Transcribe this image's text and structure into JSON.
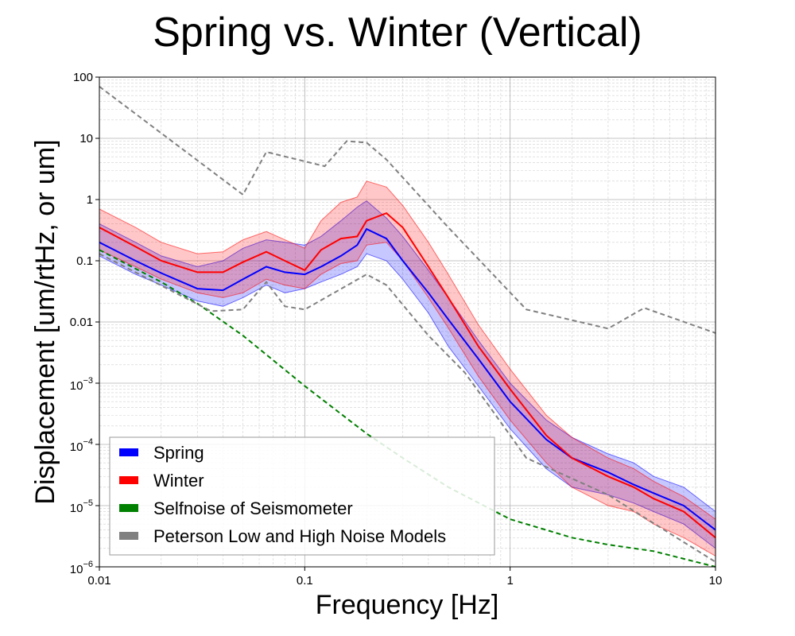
{
  "chart_data": {
    "type": "line",
    "title": "Spring vs. Winter (Vertical)",
    "xlabel": "Frequency [Hz]",
    "ylabel": "Displacement [um/rtHz, or um]",
    "x_scale": "log",
    "y_scale": "log",
    "xlim": [
      0.01,
      10
    ],
    "ylim": [
      1e-06,
      100
    ],
    "grid": true,
    "legend_position": "lower-left",
    "x_ticks": [
      {
        "value": 0.01,
        "label": "0.01"
      },
      {
        "value": 0.1,
        "label": "0.1"
      },
      {
        "value": 1,
        "label": "1"
      },
      {
        "value": 10,
        "label": "10"
      }
    ],
    "y_ticks": [
      {
        "value": 1e-06,
        "base": "10",
        "exp": "−6"
      },
      {
        "value": 1e-05,
        "base": "10",
        "exp": "−5"
      },
      {
        "value": 0.0001,
        "base": "10",
        "exp": "−4"
      },
      {
        "value": 0.001,
        "base": "10",
        "exp": "−3"
      },
      {
        "value": 0.01,
        "base": "0.01",
        "exp": ""
      },
      {
        "value": 0.1,
        "base": "0.1",
        "exp": ""
      },
      {
        "value": 1,
        "base": "1",
        "exp": ""
      },
      {
        "value": 10,
        "base": "10",
        "exp": ""
      },
      {
        "value": 100,
        "base": "100",
        "exp": ""
      }
    ],
    "series": [
      {
        "name": "Spring",
        "color": "#0000ff",
        "kind": "median-with-band",
        "x": [
          0.01,
          0.015,
          0.02,
          0.03,
          0.04,
          0.05,
          0.065,
          0.08,
          0.1,
          0.12,
          0.15,
          0.18,
          0.2,
          0.25,
          0.3,
          0.4,
          0.5,
          0.7,
          1.0,
          1.5,
          2.0,
          3.0,
          4.0,
          5.0,
          7.0,
          10.0
        ],
        "median": [
          0.2,
          0.1,
          0.063,
          0.035,
          0.033,
          0.05,
          0.08,
          0.065,
          0.06,
          0.08,
          0.12,
          0.18,
          0.33,
          0.23,
          0.1,
          0.03,
          0.011,
          0.0025,
          0.0005,
          0.00012,
          6e-05,
          3.5e-05,
          2.2e-05,
          1.6e-05,
          1e-05,
          4e-06
        ],
        "upper": [
          0.4,
          0.2,
          0.12,
          0.08,
          0.1,
          0.16,
          0.22,
          0.2,
          0.18,
          0.25,
          0.45,
          0.75,
          0.95,
          0.5,
          0.25,
          0.07,
          0.025,
          0.005,
          0.001,
          0.00025,
          0.00013,
          7e-05,
          5e-05,
          3e-05,
          2e-05,
          8e-06
        ],
        "lower": [
          0.12,
          0.06,
          0.04,
          0.022,
          0.018,
          0.025,
          0.04,
          0.03,
          0.035,
          0.045,
          0.06,
          0.08,
          0.13,
          0.1,
          0.05,
          0.014,
          0.004,
          0.0009,
          0.00018,
          4e-05,
          2e-05,
          1.5e-05,
          1.1e-05,
          8e-06,
          5e-06,
          2e-06
        ]
      },
      {
        "name": "Winter",
        "color": "#ff0000",
        "kind": "median-with-band",
        "x": [
          0.01,
          0.015,
          0.02,
          0.03,
          0.04,
          0.05,
          0.065,
          0.08,
          0.1,
          0.12,
          0.15,
          0.18,
          0.2,
          0.25,
          0.3,
          0.4,
          0.5,
          0.7,
          1.0,
          1.5,
          2.0,
          3.0,
          4.0,
          5.0,
          7.0,
          10.0
        ],
        "median": [
          0.35,
          0.17,
          0.1,
          0.065,
          0.065,
          0.095,
          0.14,
          0.1,
          0.07,
          0.15,
          0.23,
          0.25,
          0.45,
          0.6,
          0.35,
          0.08,
          0.025,
          0.004,
          0.0008,
          0.00014,
          6e-05,
          3e-05,
          2e-05,
          1.3e-05,
          8e-06,
          3e-06
        ],
        "upper": [
          0.7,
          0.35,
          0.2,
          0.13,
          0.14,
          0.22,
          0.3,
          0.22,
          0.16,
          0.45,
          0.9,
          1.1,
          2.0,
          1.6,
          0.8,
          0.2,
          0.06,
          0.009,
          0.0017,
          0.0003,
          0.00013,
          6e-05,
          4e-05,
          2.5e-05,
          1.4e-05,
          6e-06
        ],
        "lower": [
          0.15,
          0.08,
          0.05,
          0.03,
          0.025,
          0.03,
          0.05,
          0.04,
          0.035,
          0.06,
          0.09,
          0.1,
          0.18,
          0.2,
          0.1,
          0.025,
          0.008,
          0.0013,
          0.00025,
          5e-05,
          2e-05,
          1e-05,
          8e-06,
          5e-06,
          3e-06,
          1.5e-06
        ]
      },
      {
        "name": "Selfnoise of Seismometer",
        "color": "#008000",
        "kind": "dashed",
        "x": [
          0.01,
          0.02,
          0.03,
          0.05,
          0.1,
          0.2,
          0.3,
          0.5,
          1.0,
          2.0,
          3.0,
          5.0,
          10.0
        ],
        "y": [
          0.15,
          0.045,
          0.02,
          0.006,
          0.0009,
          0.00015,
          6e-05,
          2e-05,
          6e-06,
          3e-06,
          2.3e-06,
          1.8e-06,
          1e-06
        ]
      },
      {
        "name": "Peterson Low and High Noise Models",
        "color": "#808080",
        "kind": "dashed",
        "segments": [
          {
            "x": [
              0.01,
              0.05,
              0.065,
              0.125,
              0.16,
              0.2,
              0.25,
              0.5,
              1.2,
              3.0,
              4.5,
              10.0
            ],
            "y": [
              70,
              1.2,
              6.0,
              3.5,
              9.0,
              8.5,
              4.5,
              0.35,
              0.016,
              0.0078,
              0.017,
              0.0066
            ]
          },
          {
            "x": [
              0.01,
              0.035,
              0.05,
              0.065,
              0.08,
              0.1,
              0.2,
              0.25,
              0.4,
              0.6,
              0.8,
              1.2,
              3.0,
              10.0
            ],
            "y": [
              0.13,
              0.015,
              0.016,
              0.045,
              0.018,
              0.016,
              0.06,
              0.04,
              0.006,
              0.0015,
              0.0004,
              6e-05,
              1.5e-05,
              1.2e-06
            ]
          }
        ]
      }
    ]
  }
}
